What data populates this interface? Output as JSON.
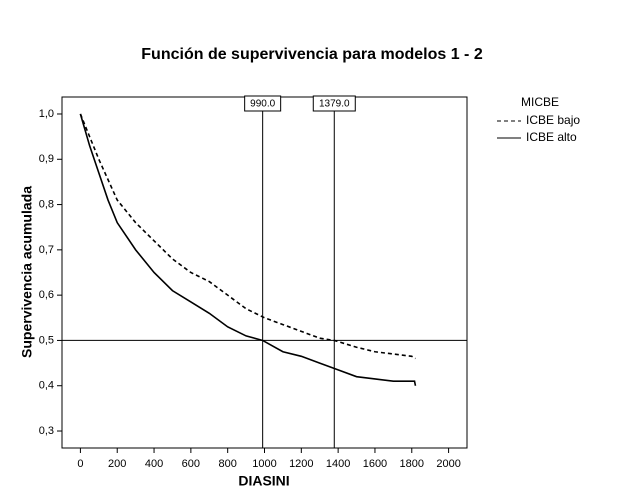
{
  "chart_data": {
    "type": "line",
    "title": "Función de supervivencia para modelos 1 - 2",
    "x_label": "DIASINI",
    "y_label": "Supervivencia acumulada",
    "legend_title": "MICBE",
    "xlim": [
      -100,
      2100
    ],
    "ylim": [
      0.2625,
      1.0375
    ],
    "xticks": [
      0,
      200,
      400,
      600,
      800,
      1000,
      1200,
      1400,
      1600,
      1800,
      2000
    ],
    "yticks": [
      {
        "value": 1.0,
        "label": "1,0"
      },
      {
        "value": 0.9,
        "label": "0,9"
      },
      {
        "value": 0.8,
        "label": "0,8"
      },
      {
        "value": 0.7,
        "label": "0,7"
      },
      {
        "value": 0.6,
        "label": "0,6"
      },
      {
        "value": 0.5,
        "label": "0,5"
      },
      {
        "value": 0.4,
        "label": "0,4"
      },
      {
        "value": 0.3,
        "label": "0,3"
      }
    ],
    "reference_lines": [
      {
        "axis": "x",
        "value": 990,
        "label": "990.0"
      },
      {
        "axis": "x",
        "value": 1379,
        "label": "1379.0"
      },
      {
        "axis": "y",
        "value": 0.5
      }
    ],
    "series": [
      {
        "name": "ICBE bajo",
        "color": "#000000",
        "style": "dashed",
        "x": [
          0,
          50,
          100,
          200,
          300,
          400,
          500,
          600,
          700,
          800,
          900,
          1000,
          1100,
          1200,
          1300,
          1379,
          1500,
          1600,
          1700,
          1800,
          1820
        ],
        "values": [
          1.0,
          0.95,
          0.9,
          0.81,
          0.76,
          0.72,
          0.68,
          0.65,
          0.63,
          0.6,
          0.57,
          0.55,
          0.535,
          0.52,
          0.505,
          0.5,
          0.485,
          0.475,
          0.47,
          0.465,
          0.46
        ]
      },
      {
        "name": "ICBE alto",
        "color": "#000000",
        "style": "solid",
        "x": [
          0,
          50,
          100,
          150,
          200,
          300,
          400,
          500,
          600,
          700,
          800,
          900,
          990,
          1100,
          1200,
          1300,
          1400,
          1500,
          1600,
          1700,
          1815,
          1820
        ],
        "values": [
          1.0,
          0.93,
          0.87,
          0.81,
          0.76,
          0.7,
          0.65,
          0.61,
          0.585,
          0.56,
          0.53,
          0.51,
          0.5,
          0.475,
          0.465,
          0.45,
          0.435,
          0.42,
          0.415,
          0.41,
          0.41,
          0.4
        ]
      }
    ]
  }
}
